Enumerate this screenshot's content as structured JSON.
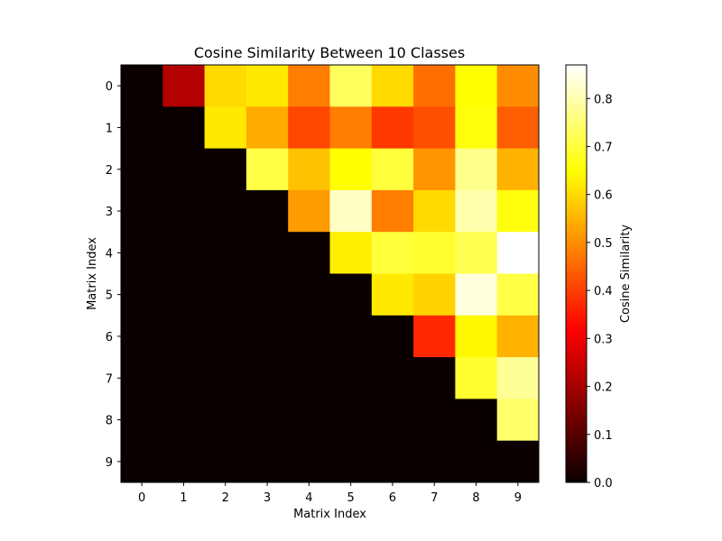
{
  "chart_data": {
    "type": "heatmap",
    "title": "Cosine Similarity Between 10 Classes",
    "xlabel": "Matrix Index",
    "ylabel": "Matrix Index",
    "x_ticks": [
      "0",
      "1",
      "2",
      "3",
      "4",
      "5",
      "6",
      "7",
      "8",
      "9"
    ],
    "y_ticks": [
      "0",
      "1",
      "2",
      "3",
      "4",
      "5",
      "6",
      "7",
      "8",
      "9"
    ],
    "colormap": "hot",
    "vmin": 0.0,
    "vmax": 0.87,
    "colorbar": {
      "label": "Cosine Similarity",
      "ticks": [
        "0.0",
        "0.1",
        "0.2",
        "0.3",
        "0.4",
        "0.5",
        "0.6",
        "0.7",
        "0.8"
      ]
    },
    "matrix": [
      [
        0.0,
        0.21,
        0.6,
        0.62,
        0.48,
        0.73,
        0.6,
        0.46,
        0.65,
        0.5
      ],
      [
        0.0,
        0.0,
        0.62,
        0.54,
        0.41,
        0.48,
        0.39,
        0.42,
        0.66,
        0.44
      ],
      [
        0.0,
        0.0,
        0.0,
        0.71,
        0.57,
        0.65,
        0.7,
        0.51,
        0.77,
        0.55
      ],
      [
        0.0,
        0.0,
        0.0,
        0.0,
        0.52,
        0.82,
        0.48,
        0.6,
        0.8,
        0.66
      ],
      [
        0.0,
        0.0,
        0.0,
        0.0,
        0.0,
        0.63,
        0.7,
        0.69,
        0.72,
        0.87
      ],
      [
        0.0,
        0.0,
        0.0,
        0.0,
        0.0,
        0.0,
        0.62,
        0.59,
        0.84,
        0.71
      ],
      [
        0.0,
        0.0,
        0.0,
        0.0,
        0.0,
        0.0,
        0.0,
        0.37,
        0.64,
        0.55
      ],
      [
        0.0,
        0.0,
        0.0,
        0.0,
        0.0,
        0.0,
        0.0,
        0.0,
        0.69,
        0.78
      ],
      [
        0.0,
        0.0,
        0.0,
        0.0,
        0.0,
        0.0,
        0.0,
        0.0,
        0.0,
        0.74
      ],
      [
        0.0,
        0.0,
        0.0,
        0.0,
        0.0,
        0.0,
        0.0,
        0.0,
        0.0,
        0.0
      ]
    ]
  }
}
